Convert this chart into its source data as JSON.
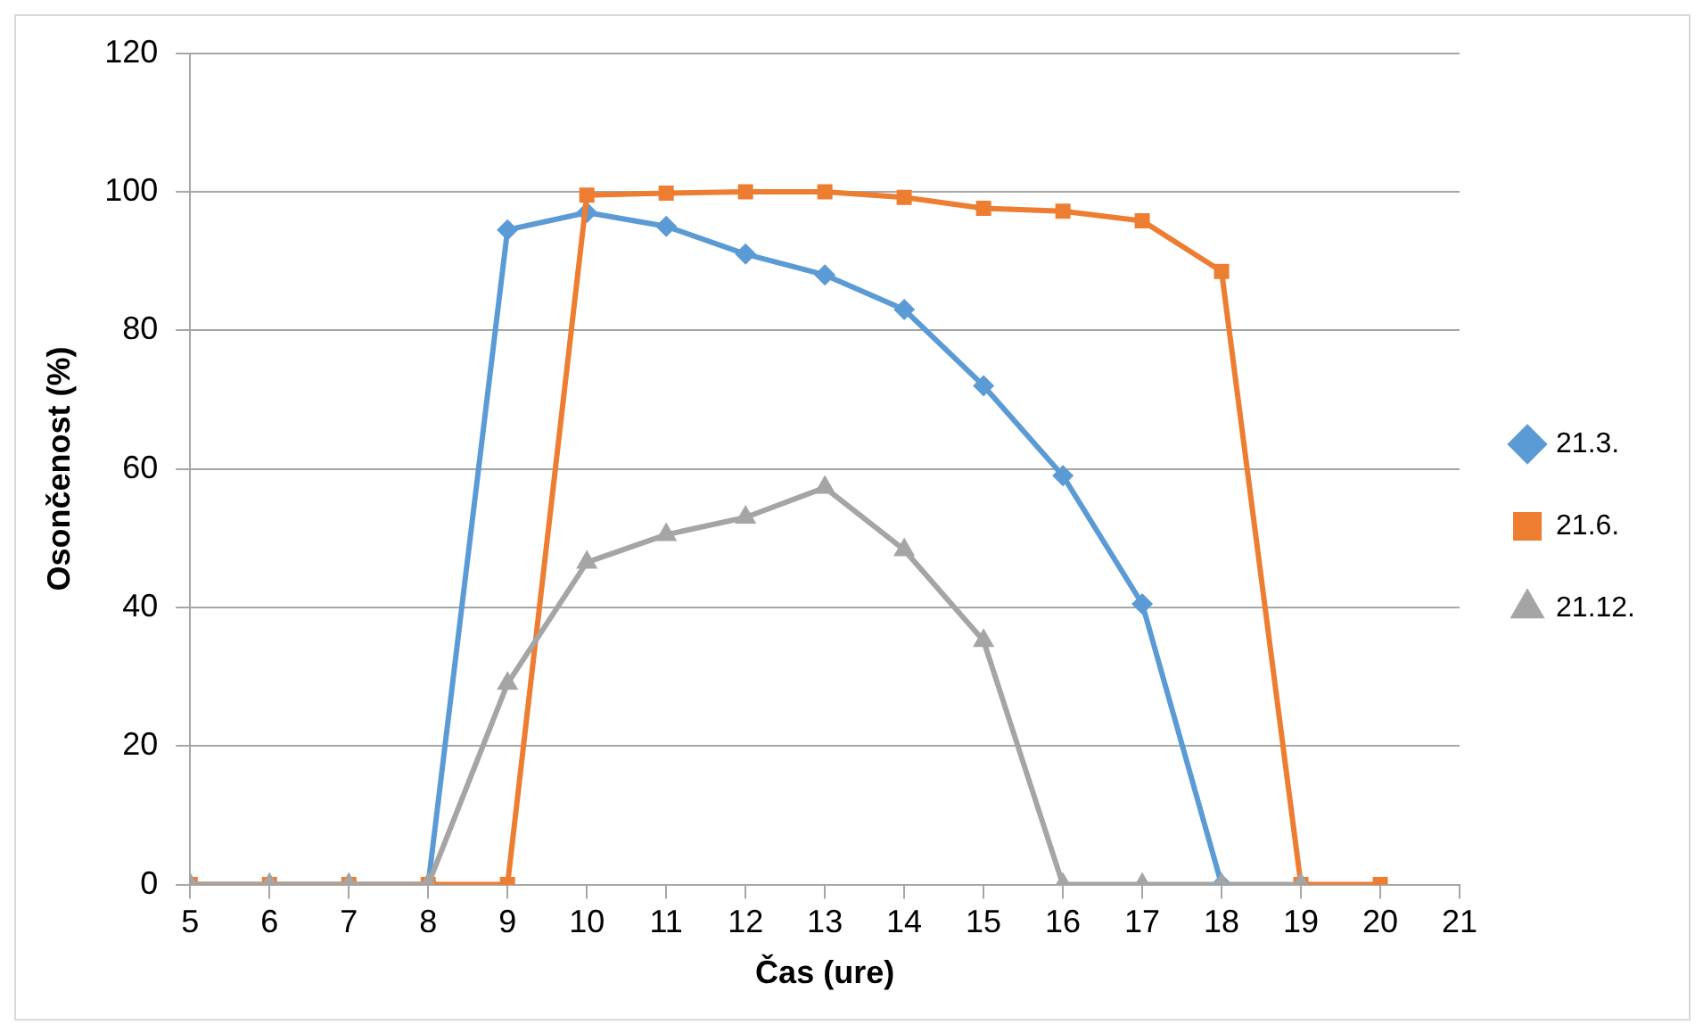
{
  "chart_data": {
    "type": "line",
    "xlabel": "Čas (ure)",
    "ylabel": "Osončenost (%)",
    "x": [
      5,
      6,
      7,
      8,
      9,
      10,
      11,
      12,
      13,
      14,
      15,
      16,
      17,
      18,
      19,
      20
    ],
    "xlim": [
      5,
      21
    ],
    "xticks": [
      5,
      6,
      7,
      8,
      9,
      10,
      11,
      12,
      13,
      14,
      15,
      16,
      17,
      18,
      19,
      20,
      21
    ],
    "ylim": [
      0,
      120
    ],
    "yticks": [
      0,
      20,
      40,
      60,
      80,
      100,
      120
    ],
    "grid": "y",
    "legend": "right",
    "series": [
      {
        "name": "21.3.",
        "color": "#5b9bd5",
        "marker": "diamond",
        "values": [
          null,
          null,
          null,
          0,
          94.5,
          97,
          95,
          91,
          88,
          83,
          72,
          59,
          40.5,
          0,
          null,
          null
        ]
      },
      {
        "name": "21.6.",
        "color": "#ed7d31",
        "marker": "square",
        "values": [
          0,
          0,
          0,
          0,
          0,
          99.5,
          99.8,
          100,
          100,
          99.2,
          97.6,
          97.2,
          95.8,
          88.5,
          0,
          0
        ]
      },
      {
        "name": "21.12.",
        "color": "#a5a5a5",
        "marker": "triangle",
        "values": [
          0,
          0,
          0,
          0,
          29,
          46.5,
          50.5,
          53,
          57.3,
          48.3,
          35.2,
          0,
          0,
          0,
          0,
          null
        ]
      }
    ]
  }
}
